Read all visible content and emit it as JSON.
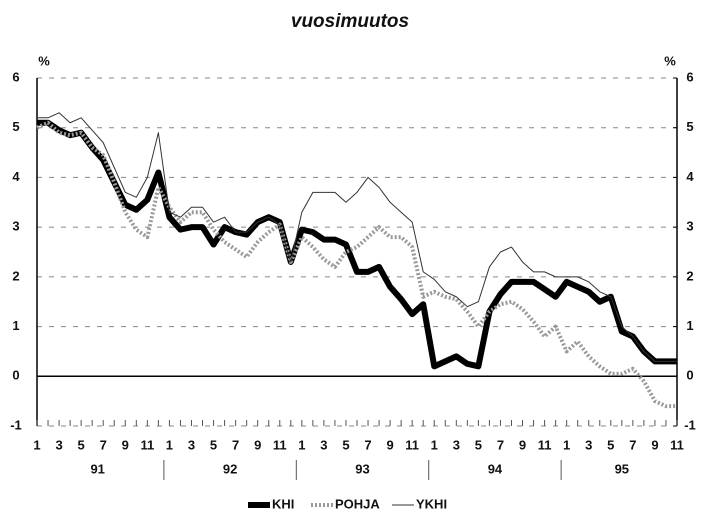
{
  "chart_data": {
    "type": "line",
    "title": "vuosimuutos",
    "y_unit": "%",
    "y2_unit": "%",
    "categories": [
      "1",
      null,
      "3",
      null,
      "5",
      null,
      "7",
      null,
      "9",
      null,
      "11",
      null,
      "1",
      null,
      "3",
      null,
      "5",
      null,
      "7",
      null,
      "9",
      null,
      "11",
      null,
      "1",
      null,
      "3",
      null,
      "5",
      null,
      "7",
      null,
      "9",
      null,
      "11",
      null,
      "1",
      null,
      "3",
      null,
      "5",
      null,
      "7",
      null,
      "9",
      null,
      "11",
      null,
      "1",
      null,
      "3",
      null,
      "5",
      null,
      "7",
      null,
      "9",
      null,
      "11"
    ],
    "x_groups": [
      "91",
      "92",
      "93",
      "94",
      "95"
    ],
    "series": [
      {
        "name": "KHI",
        "color": "#000000",
        "line_width": 6,
        "dash": "none",
        "values": [
          5.1,
          5.1,
          4.95,
          4.85,
          4.9,
          4.6,
          4.35,
          3.9,
          3.45,
          3.35,
          3.55,
          4.1,
          3.2,
          2.95,
          3.0,
          3.0,
          2.65,
          3.0,
          2.9,
          2.85,
          3.1,
          3.2,
          3.1,
          2.3,
          2.95,
          2.9,
          2.75,
          2.75,
          2.65,
          2.1,
          2.1,
          2.2,
          1.8,
          1.55,
          1.25,
          1.45,
          0.2,
          0.3,
          0.4,
          0.25,
          0.2,
          1.3,
          1.65,
          1.9,
          1.9,
          1.9,
          1.75,
          1.6,
          1.9,
          1.8,
          1.7,
          1.5,
          1.6,
          0.9,
          0.8,
          0.5,
          0.3,
          0.3,
          0.3
        ]
      },
      {
        "name": "POHJA",
        "color": "#999999",
        "line_width": 4,
        "dash": "2,2",
        "values": [
          5.0,
          5.1,
          4.9,
          4.85,
          4.9,
          4.6,
          4.45,
          3.9,
          3.3,
          2.95,
          2.8,
          3.8,
          3.4,
          3.1,
          3.3,
          3.3,
          2.95,
          2.7,
          2.55,
          2.4,
          2.7,
          2.9,
          3.05,
          2.3,
          2.8,
          2.6,
          2.35,
          2.2,
          2.5,
          2.6,
          2.8,
          3.0,
          2.8,
          2.8,
          2.6,
          1.6,
          1.7,
          1.6,
          1.55,
          1.3,
          1.0,
          1.3,
          1.45,
          1.5,
          1.35,
          1.1,
          0.8,
          1.0,
          0.5,
          0.7,
          0.4,
          0.2,
          0.05,
          0.05,
          0.15,
          -0.1,
          -0.5,
          -0.6,
          -0.6
        ]
      },
      {
        "name": "YKHI",
        "color": "#333333",
        "line_width": 1,
        "dash": "none",
        "values": [
          5.2,
          5.2,
          5.3,
          5.1,
          5.2,
          4.95,
          4.7,
          4.2,
          3.7,
          3.6,
          4.0,
          4.9,
          3.3,
          3.2,
          3.4,
          3.4,
          3.1,
          3.2,
          2.9,
          2.9,
          3.1,
          3.2,
          3.05,
          2.3,
          3.3,
          3.7,
          3.7,
          3.7,
          3.5,
          3.7,
          4.0,
          3.8,
          3.5,
          3.3,
          3.1,
          2.1,
          1.95,
          1.7,
          1.6,
          1.4,
          1.5,
          2.2,
          2.5,
          2.6,
          2.3,
          2.1,
          2.1,
          2.0,
          2.0,
          2.0,
          1.9,
          1.7,
          1.6,
          1.0,
          0.8,
          0.5,
          0.3,
          0.3,
          0.3
        ]
      }
    ],
    "ylim": [
      -1,
      6
    ],
    "yticks": [
      -1,
      0,
      1,
      2,
      3,
      4,
      5,
      6
    ],
    "y2lim": [
      -1,
      6
    ],
    "y2ticks": [
      -1,
      0,
      1,
      2,
      3,
      4,
      5,
      6
    ],
    "grid": true,
    "legend": "bottom"
  }
}
